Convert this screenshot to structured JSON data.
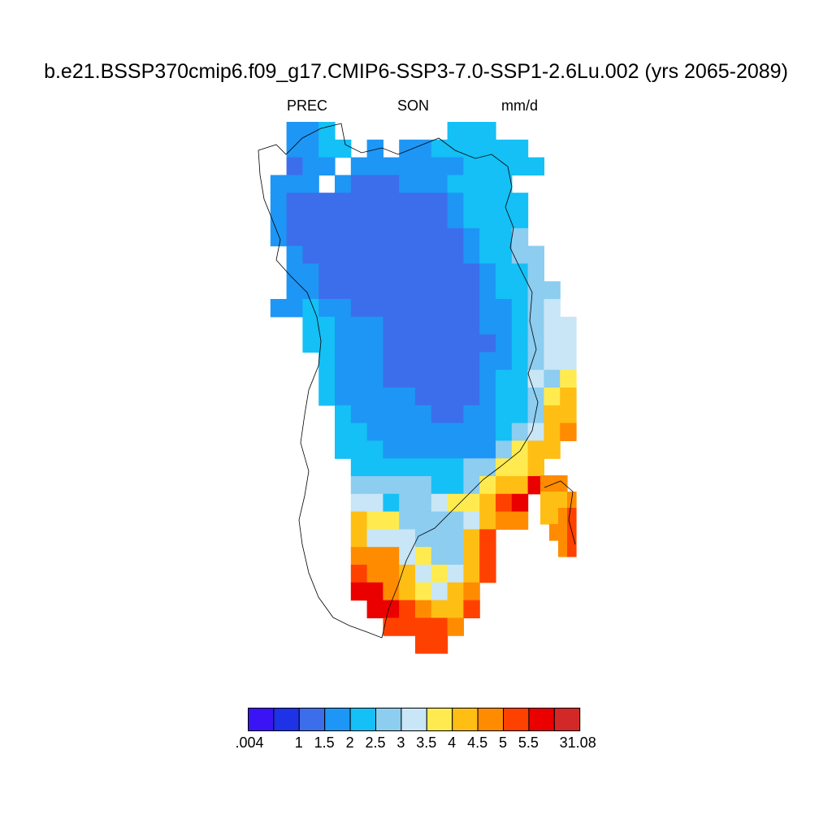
{
  "title": "b.e21.BSSP370cmip6.f09_g17.CMIP6-SSP3-7.0-SSP1-2.6Lu.002 (yrs 2065-2089)",
  "left_string": "PREC",
  "center_string": "SON",
  "right_string": "mm/d",
  "colorbar": {
    "colors": [
      "#3b14f5",
      "#1e32e6",
      "#3c6eeb",
      "#1e96f5",
      "#14c0f5",
      "#8ccdf0",
      "#c8e6f5",
      "#ffeb50",
      "#ffbe14",
      "#ff8c00",
      "#ff4100",
      "#eb0000",
      "#d22828"
    ],
    "labels": [
      ".004",
      "1",
      "1.5",
      "2",
      "2.5",
      "3",
      "3.5",
      "4",
      "4.5",
      "5",
      "5.5",
      "31.08"
    ]
  },
  "map_legend": [
    {
      "key": "A",
      "range": "0.004-1"
    },
    {
      "key": "B",
      "range": "1-1.5"
    },
    {
      "key": "C",
      "range": "1.5-2"
    },
    {
      "key": "D",
      "range": "2-2.5"
    },
    {
      "key": "E",
      "range": "2.5-3"
    },
    {
      "key": "F",
      "range": "3-3.5"
    },
    {
      "key": "G",
      "range": "3.5-4"
    },
    {
      "key": "H",
      "range": "4-4.5"
    },
    {
      "key": "I",
      "range": "4.5-5"
    },
    {
      "key": "J",
      "range": "5-5.5"
    },
    {
      "key": "K",
      "range": "5.5-31.08"
    }
  ],
  "precip_field": {
    "value_key": [
      "A=bin 1",
      "B=bin 2",
      "C=bin 3",
      "D=bin 4",
      "E=bin 5",
      "F=bin 6",
      "G=bin 7",
      "H=bin 8",
      "I=bin 9",
      "J=bin 10",
      "K=bin 11"
    ],
    "rows": [
      "..CCD.......DDD.....",
      "..CCDD.C.CCDDDDDD...",
      "..BCC.CCCCCCCDDDDD..",
      ".CCC.CBBBCCCDDDD....",
      ".CBBBBBBBBBBCDDDD...",
      ".CBBBBBBBBBBCDDDD...",
      ".CBBBBBBBBBBBCDDE...",
      "..CBBBBBBBBBBCDDEE..",
      "..CCBBBBBBBBBBCDDE..",
      "..CCBBBBBBBBBBCDDEE.",
      ".CCDCCBBBBBBBBCCDEF.",
      "...DDCCCBBBBBBCCDEFF",
      "...DDCCCBBBBBBBCDEFF",
      "....DCCCBBBBBBCCDEFF",
      "....DCCCBBBBBBCDDFEG",
      "....DCCCCCBBBBCDDEGH",
      ".....DCCCCCBBCCDDEHH",
      ".....DDCCCCCCCCDEFHI",
      ".....DDDCCCCCCCEGHH.",
      "......DDDDDDDEEGGH..",
      "......EEEEEDDEGHHK..",
      "......FFDEEFGGHJK...",
      "......HGGEEEEFHII...",
      "......HFFFEEEHJ.....",
      "......IIIFGEEHJ.....",
      "......JIIHFGFHJ.....",
      "......KKIHGFHI......",
      ".......KKJIHHJ......",
      "........JJJJI.......",
      "..........JJ........"
    ],
    "island_rows": [
      "III.",
      "HHHI",
      "HHIJ",
      ".IIJ",
      "..IJ"
    ]
  }
}
